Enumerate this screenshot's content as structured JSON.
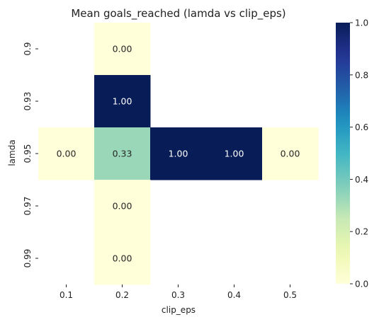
{
  "chart_data": {
    "type": "heatmap",
    "title": "Mean goals_reached (lamda vs clip_eps)",
    "xlabel": "clip_eps",
    "ylabel": "lamda",
    "x_categories": [
      "0.1",
      "0.2",
      "0.3",
      "0.4",
      "0.5"
    ],
    "y_categories": [
      "0.9",
      "0.93",
      "0.95",
      "0.97",
      "0.99"
    ],
    "values": [
      [
        null,
        0.0,
        null,
        null,
        null
      ],
      [
        null,
        1.0,
        null,
        null,
        null
      ],
      [
        0.0,
        0.33,
        1.0,
        1.0,
        0.0
      ],
      [
        null,
        0.0,
        null,
        null,
        null
      ],
      [
        null,
        0.0,
        null,
        null,
        null
      ]
    ],
    "value_labels": [
      [
        null,
        "0.00",
        null,
        null,
        null
      ],
      [
        null,
        "1.00",
        null,
        null,
        null
      ],
      [
        "0.00",
        "0.33",
        "1.00",
        "1.00",
        "0.00"
      ],
      [
        null,
        "0.00",
        null,
        null,
        null
      ],
      [
        null,
        "0.00",
        null,
        null,
        null
      ]
    ],
    "colorbar": {
      "min": 0.0,
      "max": 1.0,
      "ticks": [
        "0.0",
        "0.2",
        "0.4",
        "0.6",
        "0.8",
        "1.0"
      ],
      "colormap": "YlGnBu"
    }
  }
}
